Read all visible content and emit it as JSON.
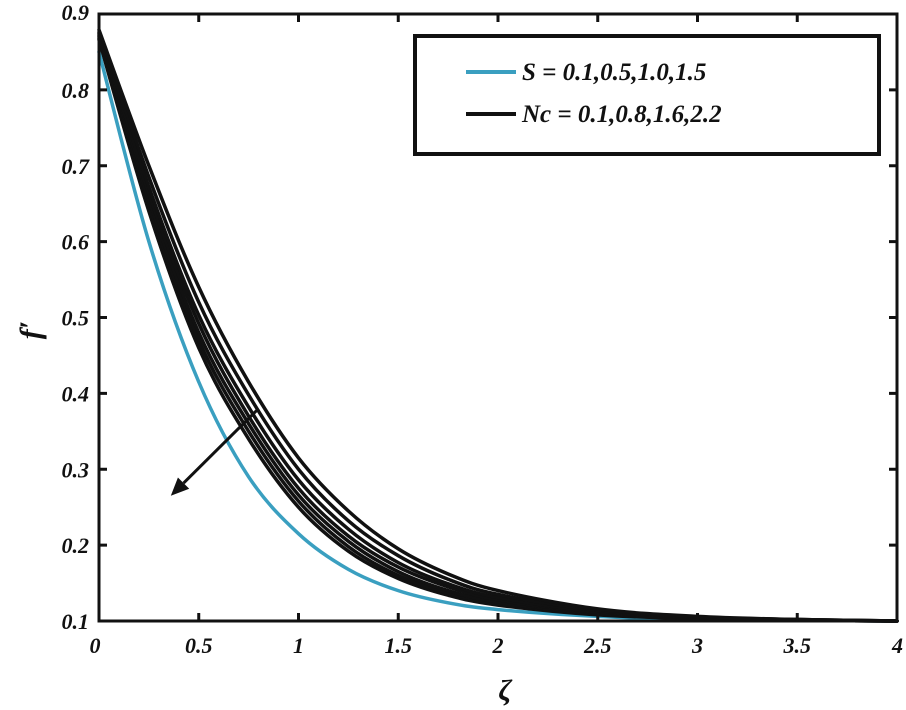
{
  "chart_data": {
    "type": "line",
    "title": "",
    "xlabel": "ζ",
    "ylabel": "f′",
    "xlim": [
      0,
      4
    ],
    "ylim": [
      0.1,
      0.9
    ],
    "xticks": [
      0,
      0.5,
      1,
      1.5,
      2,
      2.5,
      3,
      3.5,
      4
    ],
    "xtick_labels": [
      "0",
      "0.5",
      "1",
      "1.5",
      "2",
      "2.5",
      "3",
      "3.5",
      "4"
    ],
    "yticks": [
      0.1,
      0.2,
      0.3,
      0.4,
      0.5,
      0.6,
      0.7,
      0.8,
      0.9
    ],
    "ytick_labels": [
      "0.1",
      "0.2",
      "0.3",
      "0.4",
      "0.5",
      "0.6",
      "0.7",
      "0.8",
      "0.9"
    ],
    "grid": false,
    "legend_position": "top-right",
    "legend": [
      {
        "label": "S = 0.1,0.5,1.0,1.5",
        "color": "#3a9fc0"
      },
      {
        "label": "Nc = 0.1,0.8,1.6,2.2",
        "color": "#111111"
      }
    ],
    "annotation": {
      "type": "arrow",
      "meaning": "direction of increasing parameter",
      "from": [
        0.8,
        0.38
      ],
      "to": [
        0.36,
        0.265
      ]
    },
    "x": [
      0,
      0.25,
      0.5,
      0.75,
      1,
      1.25,
      1.5,
      1.75,
      2,
      2.5,
      3,
      3.5,
      4
    ],
    "series": [
      {
        "group": "S",
        "color": "#3a9fc0",
        "values": [
          0.85,
          0.6,
          0.415,
          0.29,
          0.215,
          0.168,
          0.14,
          0.124,
          0.115,
          0.106,
          0.102,
          0.101,
          0.1
        ]
      },
      {
        "group": "Nc",
        "color": "#111111",
        "values": [
          0.866,
          0.64,
          0.46,
          0.34,
          0.25,
          0.192,
          0.156,
          0.134,
          0.121,
          0.108,
          0.103,
          0.101,
          0.1
        ]
      },
      {
        "group": "Nc",
        "color": "#111111",
        "values": [
          0.868,
          0.648,
          0.47,
          0.35,
          0.258,
          0.198,
          0.16,
          0.137,
          0.123,
          0.109,
          0.103,
          0.101,
          0.1
        ]
      },
      {
        "group": "Nc",
        "color": "#111111",
        "values": [
          0.87,
          0.655,
          0.48,
          0.36,
          0.266,
          0.205,
          0.165,
          0.14,
          0.125,
          0.11,
          0.104,
          0.101,
          0.1
        ]
      },
      {
        "group": "Nc",
        "color": "#111111",
        "values": [
          0.872,
          0.663,
          0.492,
          0.37,
          0.275,
          0.212,
          0.171,
          0.145,
          0.128,
          0.111,
          0.104,
          0.101,
          0.1
        ]
      },
      {
        "group": "Nc",
        "color": "#111111",
        "values": [
          0.874,
          0.672,
          0.503,
          0.382,
          0.286,
          0.221,
          0.177,
          0.149,
          0.131,
          0.112,
          0.105,
          0.102,
          0.1
        ]
      },
      {
        "group": "Nc",
        "color": "#111111",
        "values": [
          0.876,
          0.685,
          0.52,
          0.398,
          0.3,
          0.232,
          0.186,
          0.155,
          0.135,
          0.114,
          0.105,
          0.102,
          0.1
        ]
      },
      {
        "group": "Nc",
        "color": "#111111",
        "values": [
          0.879,
          0.7,
          0.54,
          0.415,
          0.315,
          0.245,
          0.195,
          0.162,
          0.14,
          0.116,
          0.106,
          0.102,
          0.1
        ]
      }
    ]
  }
}
